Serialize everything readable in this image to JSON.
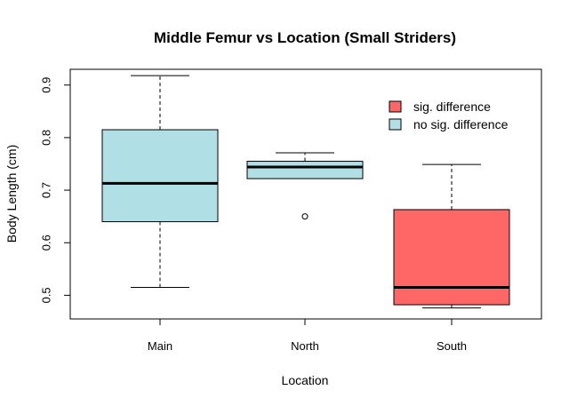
{
  "chart_data": {
    "type": "boxplot",
    "title": "Middle Femur vs Location (Small Striders)",
    "xlabel": "Location",
    "ylabel": "Body Length (cm)",
    "categories": [
      "Main",
      "North",
      "South"
    ],
    "ylim": [
      0.455,
      0.93
    ],
    "yticks": [
      0.5,
      0.6,
      0.7,
      0.8,
      0.9
    ],
    "ytick_labels": [
      "0.5",
      "0.6",
      "0.7",
      "0.8",
      "0.9"
    ],
    "grid": false,
    "boxes": [
      {
        "category": "Main",
        "whisker_low": 0.515,
        "q1": 0.64,
        "median": 0.713,
        "q3": 0.815,
        "whisker_high": 0.918,
        "outliers": [],
        "group": "no sig. difference"
      },
      {
        "category": "North",
        "whisker_low": 0.722,
        "q1": 0.722,
        "median": 0.744,
        "q3": 0.755,
        "whisker_high": 0.771,
        "outliers": [
          0.65
        ],
        "group": "no sig. difference"
      },
      {
        "category": "South",
        "whisker_low": 0.476,
        "q1": 0.482,
        "median": 0.515,
        "q3": 0.663,
        "whisker_high": 0.749,
        "outliers": [],
        "group": "sig. difference"
      }
    ],
    "legend": {
      "position": "top-right",
      "entries": [
        {
          "label": "sig. difference",
          "color": "#ff6666"
        },
        {
          "label": "no sig. difference",
          "color": "#b0dfe5"
        }
      ]
    },
    "colors": {
      "sig. difference": "#ff6666",
      "no sig. difference": "#b0dfe5"
    }
  }
}
